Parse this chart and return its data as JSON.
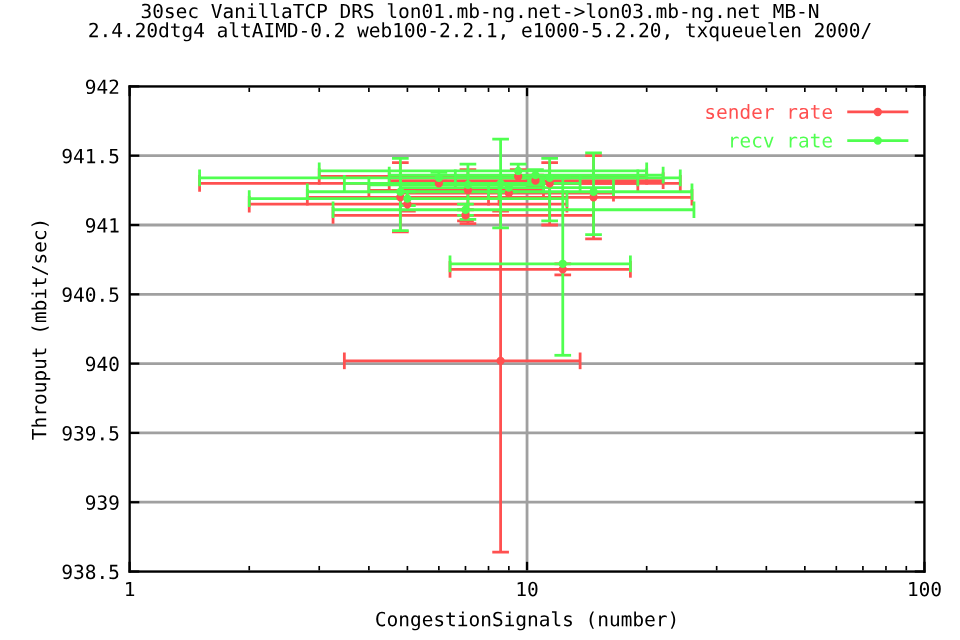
{
  "chart_data": {
    "type": "scatter",
    "title": "30sec VanillaTCP DRS lon01.mb-ng.net->lon03.mb-ng.net MB-N\n2.4.20dtg4 altAIMD-0.2 web100-2.2.1, e1000-5.2.20, txqueuelen 2000/",
    "xlabel": "CongestionSignals (number)",
    "ylabel": "Throuput (mbit/sec)",
    "log": "x",
    "xlim": [
      1,
      100
    ],
    "xticks": [
      1,
      10,
      100
    ],
    "ylim": [
      938.5,
      942
    ],
    "yticks": [
      938.5,
      939,
      939.5,
      940,
      940.5,
      941,
      941.5,
      942
    ],
    "grid": true,
    "legend": "top right",
    "marker": "circle",
    "series": [
      {
        "name": "sender rate",
        "color": "#ff5050",
        "x": [
          8.58,
          12.3,
          6.0,
          5.0,
          7.0,
          9.0,
          4.8,
          7.1,
          11.4,
          14.7,
          9.5,
          10.5
        ],
        "values": [
          940.02,
          940.68,
          941.3,
          941.15,
          941.07,
          941.23,
          941.2,
          941.25,
          941.3,
          941.2,
          941.35,
          941.32
        ],
        "xerrors": [
          [
            3.47,
            13.6
          ],
          [
            6.4,
            18.2
          ],
          [
            1.5,
            24.3
          ],
          [
            2.0,
            12.6
          ],
          [
            3.25,
            14.7
          ],
          [
            4.8,
            16.5
          ],
          [
            2.8,
            8.5
          ],
          [
            4.0,
            11.0
          ],
          [
            6.6,
            19.0
          ],
          [
            8.0,
            26.0
          ],
          [
            3.0,
            20.0
          ],
          [
            4.5,
            22.0
          ]
        ],
        "errors": [
          [
            938.64,
            941.1
          ],
          [
            940.64,
            940.72
          ],
          [
            941.26,
            941.34
          ],
          [
            941.1,
            941.2
          ],
          [
            941.03,
            941.11
          ],
          [
            941.2,
            941.26
          ],
          [
            940.95,
            941.45
          ],
          [
            941.01,
            941.4
          ],
          [
            941.0,
            941.45
          ],
          [
            940.9,
            941.5
          ],
          [
            941.3,
            941.4
          ],
          [
            941.28,
            941.36
          ]
        ]
      },
      {
        "name": "recv rate",
        "color": "#50ff50",
        "x": [
          8.58,
          12.3,
          6.0,
          5.0,
          7.0,
          9.0,
          4.8,
          7.1,
          11.4,
          14.7,
          9.5,
          10.5
        ],
        "values": [
          941.3,
          940.72,
          941.34,
          941.19,
          941.11,
          941.27,
          941.24,
          941.29,
          941.34,
          941.24,
          941.39,
          941.36
        ],
        "xerrors": [
          [
            3.47,
            13.6
          ],
          [
            6.4,
            18.2
          ],
          [
            1.5,
            24.3
          ],
          [
            2.0,
            12.6
          ],
          [
            3.25,
            26.3
          ],
          [
            4.8,
            16.5
          ],
          [
            2.8,
            8.5
          ],
          [
            4.0,
            11.0
          ],
          [
            6.6,
            19.0
          ],
          [
            8.0,
            26.0
          ],
          [
            3.0,
            20.0
          ],
          [
            4.5,
            22.0
          ]
        ],
        "errors": [
          [
            940.98,
            941.62
          ],
          [
            940.06,
            941.34
          ],
          [
            941.3,
            941.38
          ],
          [
            941.14,
            941.24
          ],
          [
            941.07,
            941.15
          ],
          [
            941.24,
            941.3
          ],
          [
            940.96,
            941.48
          ],
          [
            941.04,
            941.44
          ],
          [
            941.03,
            941.48
          ],
          [
            940.93,
            941.52
          ],
          [
            941.34,
            941.44
          ],
          [
            941.32,
            941.4
          ]
        ]
      }
    ]
  }
}
